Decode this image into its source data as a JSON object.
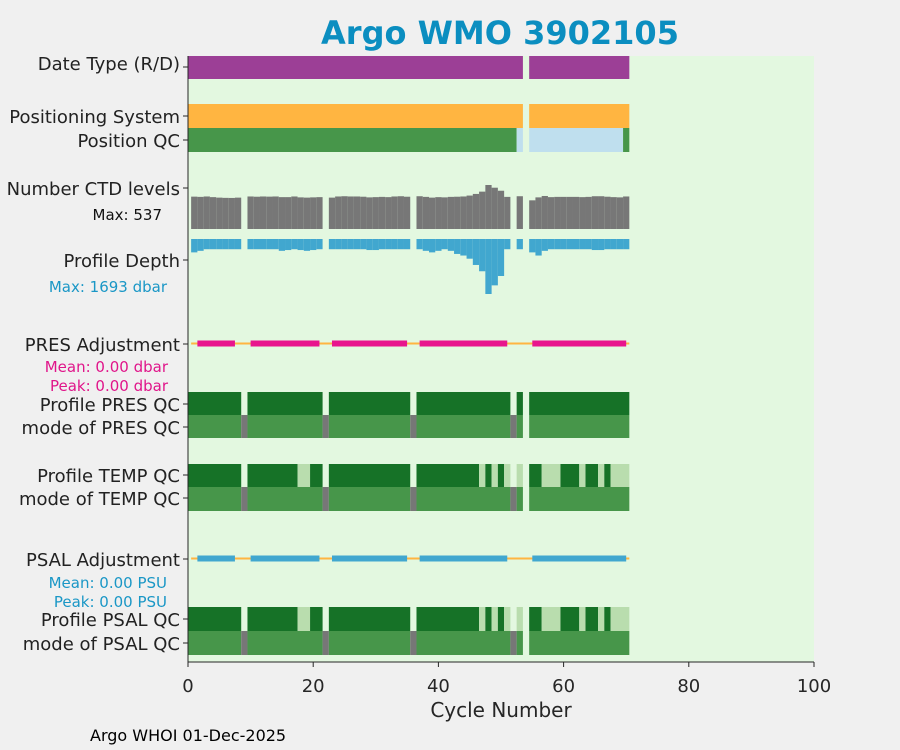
{
  "chart_data": {
    "type": "timeline",
    "title": "Argo WMO 3902105",
    "xlabel": "Cycle Number",
    "xlim": [
      0,
      100
    ],
    "xticks": [
      0,
      20,
      40,
      60,
      80,
      100
    ],
    "footer": "Argo WHOI 01-Dec-2025",
    "gaps": [
      [
        8.5,
        9.5
      ],
      [
        21.5,
        22.5
      ],
      [
        35.5,
        36.5
      ],
      [
        51.5,
        52.5
      ],
      [
        53.5,
        54.5
      ]
    ],
    "colors": {
      "background": "#e3f8e0",
      "qc_good": "#167227",
      "qc_probably_good": "#47964a",
      "qc_light": "#b9ddae",
      "qc_missing": "#bfdfee",
      "gray": "#777777",
      "date_type": "#9c3f96",
      "positioning": "#ffb541",
      "depth": "#41a7cf",
      "pres_adj": "#e8158d",
      "psal_adj": "#41a7cf",
      "adj_zero": "#ffb541",
      "title": "#0b8ec0"
    },
    "rows": [
      {
        "key": "date_type",
        "label": "Date Type (R/D)"
      },
      {
        "key": "positioning",
        "label": "Positioning System"
      },
      {
        "key": "position_qc",
        "label": "Position QC"
      },
      {
        "key": "ctd_levels",
        "label": "Number CTD levels",
        "note": "Max: 537",
        "max": 537
      },
      {
        "key": "profile_depth",
        "label": "Profile Depth",
        "note": "Max: 1693 dbar",
        "max": 1693
      },
      {
        "key": "pres_adj",
        "label": "PRES Adjustment",
        "notes": [
          "Mean: 0.00 dbar",
          "Peak: 0.00 dbar"
        ]
      },
      {
        "key": "pres_qc",
        "label": "Profile PRES QC"
      },
      {
        "key": "pres_mode",
        "label": "mode of PRES QC"
      },
      {
        "key": "temp_qc",
        "label": "Profile TEMP QC"
      },
      {
        "key": "temp_mode",
        "label": "mode of TEMP QC"
      },
      {
        "key": "psal_adj",
        "label": "PSAL Adjustment",
        "notes": [
          "Mean: 0.00 PSU",
          "Peak: 0.00 PSU"
        ]
      },
      {
        "key": "psal_qc",
        "label": "Profile PSAL QC"
      },
      {
        "key": "psal_mode",
        "label": "mode of PSAL QC"
      }
    ],
    "segments": {
      "date_type": [
        [
          0,
          53.5,
          "date_type"
        ],
        [
          54.5,
          70.5,
          "date_type"
        ]
      ],
      "positioning": [
        [
          0,
          53.5,
          "positioning"
        ],
        [
          54.5,
          70.5,
          "positioning"
        ]
      ],
      "position_qc": [
        [
          0,
          52.5,
          "qc_probably_good"
        ],
        [
          52.5,
          53.5,
          "qc_missing"
        ],
        [
          54.5,
          69.5,
          "qc_missing"
        ],
        [
          69.5,
          70.5,
          "qc_probably_good"
        ]
      ],
      "pres_qc": [
        [
          0,
          8.5,
          "qc_good"
        ],
        [
          9.5,
          21.5,
          "qc_good"
        ],
        [
          22.5,
          35.5,
          "qc_good"
        ],
        [
          36.5,
          51.5,
          "qc_good"
        ],
        [
          52.5,
          53.5,
          "qc_good"
        ],
        [
          54.5,
          70.5,
          "qc_good"
        ]
      ],
      "pres_mode": [
        [
          0,
          8.5,
          "qc_probably_good"
        ],
        [
          8.5,
          9.5,
          "gray"
        ],
        [
          9.5,
          21.5,
          "qc_probably_good"
        ],
        [
          21.5,
          22.5,
          "gray"
        ],
        [
          22.5,
          35.5,
          "qc_probably_good"
        ],
        [
          35.5,
          36.5,
          "gray"
        ],
        [
          36.5,
          51.5,
          "qc_probably_good"
        ],
        [
          51.5,
          52.5,
          "gray"
        ],
        [
          52.5,
          53.5,
          "qc_probably_good"
        ],
        [
          54.5,
          70.5,
          "qc_probably_good"
        ]
      ],
      "temp_qc": [
        [
          0,
          8.5,
          "qc_good"
        ],
        [
          9.5,
          17.5,
          "qc_good"
        ],
        [
          17.5,
          19.5,
          "qc_light"
        ],
        [
          19.5,
          21.5,
          "qc_good"
        ],
        [
          22.5,
          35.5,
          "qc_good"
        ],
        [
          36.5,
          46.5,
          "qc_good"
        ],
        [
          46.5,
          47.5,
          "qc_light"
        ],
        [
          47.5,
          48.5,
          "qc_good"
        ],
        [
          48.5,
          49.5,
          "qc_light"
        ],
        [
          49.5,
          50.5,
          "qc_good"
        ],
        [
          50.5,
          51.5,
          "qc_light"
        ],
        [
          52.5,
          53.5,
          "qc_light"
        ],
        [
          54.5,
          56.5,
          "qc_good"
        ],
        [
          56.5,
          59.5,
          "qc_light"
        ],
        [
          59.5,
          62.5,
          "qc_good"
        ],
        [
          62.5,
          63.5,
          "qc_light"
        ],
        [
          63.5,
          65.5,
          "qc_good"
        ],
        [
          65.5,
          66.5,
          "qc_light"
        ],
        [
          66.5,
          67.5,
          "qc_good"
        ],
        [
          67.5,
          70.5,
          "qc_light"
        ]
      ],
      "temp_mode": [
        [
          0,
          8.5,
          "qc_probably_good"
        ],
        [
          8.5,
          9.5,
          "gray"
        ],
        [
          9.5,
          21.5,
          "qc_probably_good"
        ],
        [
          21.5,
          22.5,
          "gray"
        ],
        [
          22.5,
          35.5,
          "qc_probably_good"
        ],
        [
          35.5,
          36.5,
          "gray"
        ],
        [
          36.5,
          51.5,
          "qc_probably_good"
        ],
        [
          51.5,
          52.5,
          "gray"
        ],
        [
          52.5,
          53.5,
          "qc_probably_good"
        ],
        [
          54.5,
          70.5,
          "qc_probably_good"
        ]
      ],
      "psal_qc": [
        [
          0,
          8.5,
          "qc_good"
        ],
        [
          9.5,
          17.5,
          "qc_good"
        ],
        [
          17.5,
          19.5,
          "qc_light"
        ],
        [
          19.5,
          21.5,
          "qc_good"
        ],
        [
          22.5,
          35.5,
          "qc_good"
        ],
        [
          36.5,
          46.5,
          "qc_good"
        ],
        [
          46.5,
          47.5,
          "qc_light"
        ],
        [
          47.5,
          48.5,
          "qc_good"
        ],
        [
          48.5,
          49.5,
          "qc_light"
        ],
        [
          49.5,
          50.5,
          "qc_good"
        ],
        [
          50.5,
          51.5,
          "qc_light"
        ],
        [
          52.5,
          53.5,
          "qc_light"
        ],
        [
          54.5,
          56.5,
          "qc_good"
        ],
        [
          56.5,
          59.5,
          "qc_light"
        ],
        [
          59.5,
          62.5,
          "qc_good"
        ],
        [
          62.5,
          63.5,
          "qc_light"
        ],
        [
          63.5,
          65.5,
          "qc_good"
        ],
        [
          65.5,
          66.5,
          "qc_light"
        ],
        [
          66.5,
          67.5,
          "qc_good"
        ],
        [
          67.5,
          70.5,
          "qc_light"
        ]
      ],
      "psal_mode": [
        [
          0,
          8.5,
          "qc_probably_good"
        ],
        [
          8.5,
          9.5,
          "gray"
        ],
        [
          9.5,
          21.5,
          "qc_probably_good"
        ],
        [
          21.5,
          22.5,
          "gray"
        ],
        [
          22.5,
          35.5,
          "qc_probably_good"
        ],
        [
          35.5,
          36.5,
          "gray"
        ],
        [
          36.5,
          51.5,
          "qc_probably_good"
        ],
        [
          51.5,
          52.5,
          "gray"
        ],
        [
          52.5,
          53.5,
          "qc_probably_good"
        ],
        [
          54.5,
          70.5,
          "qc_probably_good"
        ]
      ]
    },
    "adjustment_segments": [
      [
        1.5,
        7.5
      ],
      [
        10,
        21
      ],
      [
        23,
        35
      ],
      [
        37,
        51
      ],
      [
        55,
        70
      ]
    ],
    "ctd_levels": [
      {
        "cycle": 1,
        "value": 395
      },
      {
        "cycle": 2,
        "value": 392
      },
      {
        "cycle": 3,
        "value": 397
      },
      {
        "cycle": 4,
        "value": 389
      },
      {
        "cycle": 5,
        "value": 383
      },
      {
        "cycle": 6,
        "value": 380
      },
      {
        "cycle": 7,
        "value": 379
      },
      {
        "cycle": 8,
        "value": 383
      },
      {
        "cycle": 10,
        "value": 397
      },
      {
        "cycle": 11,
        "value": 394
      },
      {
        "cycle": 12,
        "value": 397
      },
      {
        "cycle": 13,
        "value": 395
      },
      {
        "cycle": 14,
        "value": 397
      },
      {
        "cycle": 15,
        "value": 389
      },
      {
        "cycle": 16,
        "value": 389
      },
      {
        "cycle": 17,
        "value": 397
      },
      {
        "cycle": 18,
        "value": 386
      },
      {
        "cycle": 19,
        "value": 383
      },
      {
        "cycle": 20,
        "value": 386
      },
      {
        "cycle": 21,
        "value": 389
      },
      {
        "cycle": 23,
        "value": 383
      },
      {
        "cycle": 24,
        "value": 397
      },
      {
        "cycle": 25,
        "value": 400
      },
      {
        "cycle": 26,
        "value": 397
      },
      {
        "cycle": 27,
        "value": 397
      },
      {
        "cycle": 28,
        "value": 394
      },
      {
        "cycle": 29,
        "value": 386
      },
      {
        "cycle": 30,
        "value": 389
      },
      {
        "cycle": 31,
        "value": 392
      },
      {
        "cycle": 32,
        "value": 389
      },
      {
        "cycle": 33,
        "value": 397
      },
      {
        "cycle": 34,
        "value": 400
      },
      {
        "cycle": 35,
        "value": 394
      },
      {
        "cycle": 37,
        "value": 400
      },
      {
        "cycle": 38,
        "value": 392
      },
      {
        "cycle": 39,
        "value": 383
      },
      {
        "cycle": 40,
        "value": 389
      },
      {
        "cycle": 41,
        "value": 386
      },
      {
        "cycle": 42,
        "value": 392
      },
      {
        "cycle": 43,
        "value": 394
      },
      {
        "cycle": 44,
        "value": 397
      },
      {
        "cycle": 45,
        "value": 408
      },
      {
        "cycle": 46,
        "value": 428
      },
      {
        "cycle": 47,
        "value": 456
      },
      {
        "cycle": 48,
        "value": 537
      },
      {
        "cycle": 49,
        "value": 504
      },
      {
        "cycle": 50,
        "value": 467
      },
      {
        "cycle": 51,
        "value": 392
      },
      {
        "cycle": 53,
        "value": 400
      },
      {
        "cycle": 55,
        "value": 350
      },
      {
        "cycle": 56,
        "value": 386
      },
      {
        "cycle": 57,
        "value": 403
      },
      {
        "cycle": 58,
        "value": 389
      },
      {
        "cycle": 59,
        "value": 392
      },
      {
        "cycle": 60,
        "value": 392
      },
      {
        "cycle": 61,
        "value": 392
      },
      {
        "cycle": 62,
        "value": 392
      },
      {
        "cycle": 63,
        "value": 389
      },
      {
        "cycle": 64,
        "value": 392
      },
      {
        "cycle": 65,
        "value": 400
      },
      {
        "cycle": 66,
        "value": 400
      },
      {
        "cycle": 67,
        "value": 394
      },
      {
        "cycle": 68,
        "value": 389
      },
      {
        "cycle": 69,
        "value": 386
      },
      {
        "cycle": 70,
        "value": 397
      }
    ],
    "profile_depth": [
      {
        "cycle": 1,
        "value": 412
      },
      {
        "cycle": 2,
        "value": 364
      },
      {
        "cycle": 3,
        "value": 315
      },
      {
        "cycle": 4,
        "value": 315
      },
      {
        "cycle": 5,
        "value": 315
      },
      {
        "cycle": 6,
        "value": 315
      },
      {
        "cycle": 7,
        "value": 315
      },
      {
        "cycle": 8,
        "value": 315
      },
      {
        "cycle": 10,
        "value": 315
      },
      {
        "cycle": 11,
        "value": 315
      },
      {
        "cycle": 12,
        "value": 315
      },
      {
        "cycle": 13,
        "value": 315
      },
      {
        "cycle": 14,
        "value": 315
      },
      {
        "cycle": 15,
        "value": 364
      },
      {
        "cycle": 16,
        "value": 340
      },
      {
        "cycle": 17,
        "value": 315
      },
      {
        "cycle": 18,
        "value": 340
      },
      {
        "cycle": 19,
        "value": 364
      },
      {
        "cycle": 20,
        "value": 340
      },
      {
        "cycle": 21,
        "value": 315
      },
      {
        "cycle": 23,
        "value": 315
      },
      {
        "cycle": 24,
        "value": 315
      },
      {
        "cycle": 25,
        "value": 315
      },
      {
        "cycle": 26,
        "value": 315
      },
      {
        "cycle": 27,
        "value": 315
      },
      {
        "cycle": 28,
        "value": 315
      },
      {
        "cycle": 29,
        "value": 340
      },
      {
        "cycle": 30,
        "value": 340
      },
      {
        "cycle": 31,
        "value": 315
      },
      {
        "cycle": 32,
        "value": 315
      },
      {
        "cycle": 33,
        "value": 315
      },
      {
        "cycle": 34,
        "value": 315
      },
      {
        "cycle": 35,
        "value": 315
      },
      {
        "cycle": 37,
        "value": 315
      },
      {
        "cycle": 38,
        "value": 364
      },
      {
        "cycle": 39,
        "value": 412
      },
      {
        "cycle": 40,
        "value": 364
      },
      {
        "cycle": 41,
        "value": 315
      },
      {
        "cycle": 42,
        "value": 364
      },
      {
        "cycle": 43,
        "value": 460
      },
      {
        "cycle": 44,
        "value": 509
      },
      {
        "cycle": 45,
        "value": 606
      },
      {
        "cycle": 46,
        "value": 799
      },
      {
        "cycle": 47,
        "value": 993
      },
      {
        "cycle": 48,
        "value": 1693
      },
      {
        "cycle": 49,
        "value": 1427
      },
      {
        "cycle": 50,
        "value": 1139
      },
      {
        "cycle": 51,
        "value": 315
      },
      {
        "cycle": 53,
        "value": 315
      },
      {
        "cycle": 55,
        "value": 412
      },
      {
        "cycle": 56,
        "value": 509
      },
      {
        "cycle": 57,
        "value": 364
      },
      {
        "cycle": 58,
        "value": 315
      },
      {
        "cycle": 59,
        "value": 315
      },
      {
        "cycle": 60,
        "value": 315
      },
      {
        "cycle": 61,
        "value": 315
      },
      {
        "cycle": 62,
        "value": 315
      },
      {
        "cycle": 63,
        "value": 315
      },
      {
        "cycle": 64,
        "value": 315
      },
      {
        "cycle": 65,
        "value": 340
      },
      {
        "cycle": 66,
        "value": 340
      },
      {
        "cycle": 67,
        "value": 315
      },
      {
        "cycle": 68,
        "value": 315
      },
      {
        "cycle": 69,
        "value": 315
      },
      {
        "cycle": 70,
        "value": 315
      }
    ]
  }
}
